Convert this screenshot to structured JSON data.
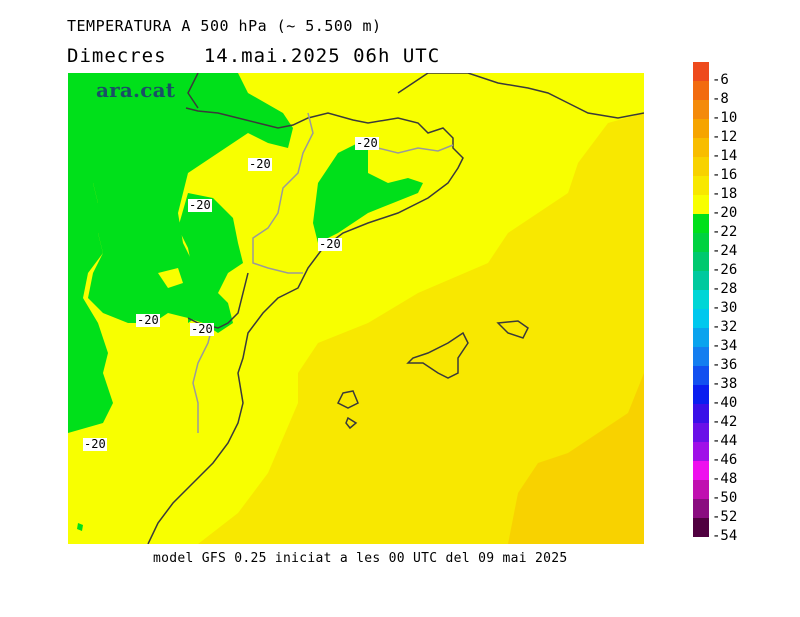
{
  "header": {
    "title": "TEMPERATURA A 500 hPa (~ 5.500 m)",
    "subtitle": "Dimecres   14.mai.2025 06h UTC"
  },
  "brand": {
    "name": "ara.cat"
  },
  "footer": {
    "text": "model GFS 0.25 iniciat a les 00 UTC del 09 mai 2025"
  },
  "map": {
    "contour_labels": [
      "-20",
      "-20",
      "-20",
      "-20",
      "-20",
      "-20",
      "-20"
    ]
  },
  "colorbar": {
    "labels": [
      "-6",
      "-8",
      "-10",
      "-12",
      "-14",
      "-16",
      "-18",
      "-20",
      "-22",
      "-24",
      "-26",
      "-28",
      "-30",
      "-32",
      "-34",
      "-36",
      "-38",
      "-40",
      "-42",
      "-44",
      "-46",
      "-48",
      "-50",
      "-52",
      "-54"
    ],
    "colors": [
      "#ee4a1c",
      "#f26b0f",
      "#f48a0a",
      "#f6a400",
      "#f8bd00",
      "#f8d200",
      "#f8e800",
      "#f8ff00",
      "#00e01a",
      "#00d240",
      "#00c96e",
      "#00c99e",
      "#00d6d6",
      "#00c8ee",
      "#0aa3ee",
      "#147ef0",
      "#1250f0",
      "#0a1ef0",
      "#3a10e8",
      "#6a10e8",
      "#a010e8",
      "#ee10ee",
      "#c010b0",
      "#8a0c80",
      "#500040"
    ]
  },
  "colors": {
    "green": "#00e01a",
    "yellow": "#f8ff00",
    "orange_light": "#f8e800",
    "orange": "#f8d200"
  }
}
